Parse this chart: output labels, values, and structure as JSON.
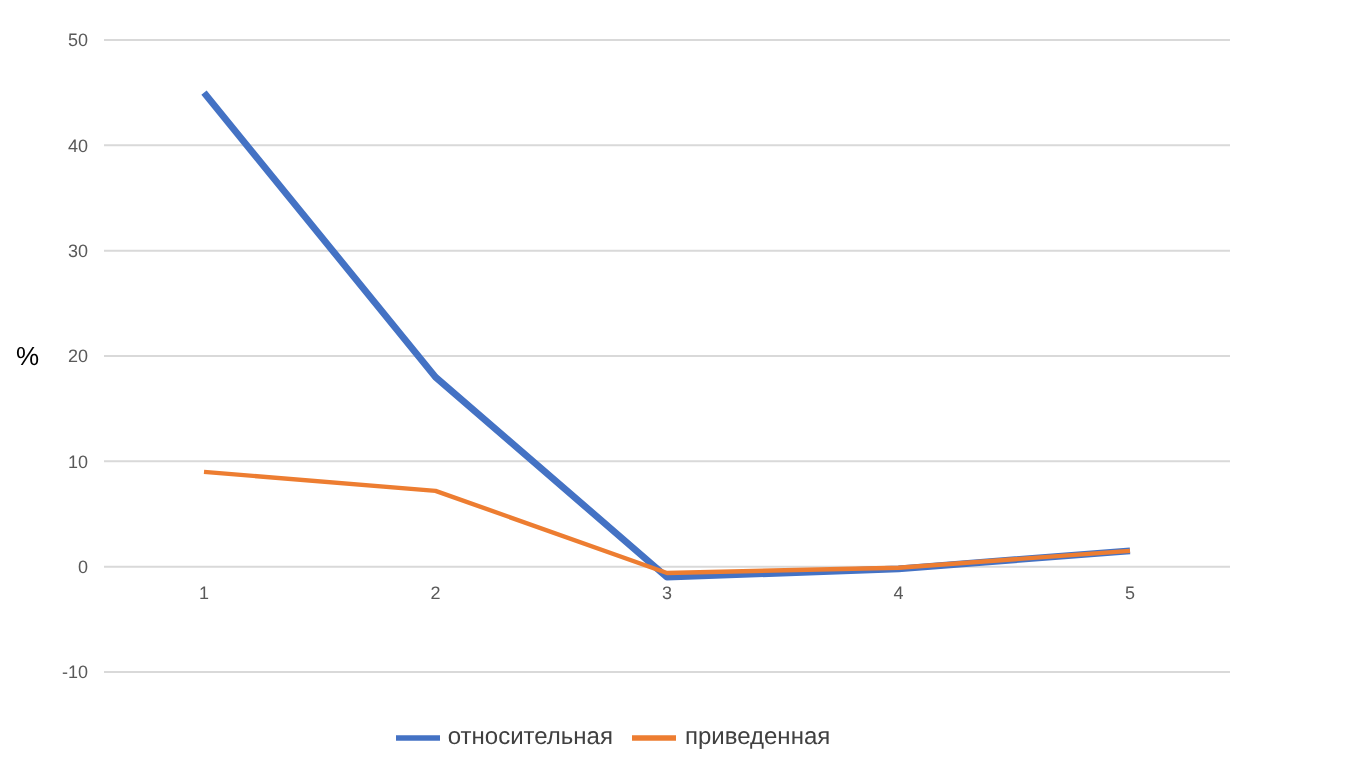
{
  "chart_data": {
    "type": "line",
    "ylabel": "%",
    "categories": [
      "1",
      "2",
      "3",
      "4",
      "5"
    ],
    "series": [
      {
        "name": "относительная",
        "color": "#4472c4",
        "values": [
          45,
          18,
          -1,
          -0.2,
          1.5
        ]
      },
      {
        "name": "приведенная",
        "color": "#ed7d31",
        "values": [
          9,
          7.2,
          -0.6,
          -0.1,
          1.5
        ]
      }
    ],
    "ylim": [
      -10,
      50
    ],
    "yticks": [
      -10,
      0,
      10,
      20,
      30,
      40,
      50
    ],
    "grid": "y",
    "legend": "bottom",
    "marker": "none",
    "line_style": "solid"
  }
}
